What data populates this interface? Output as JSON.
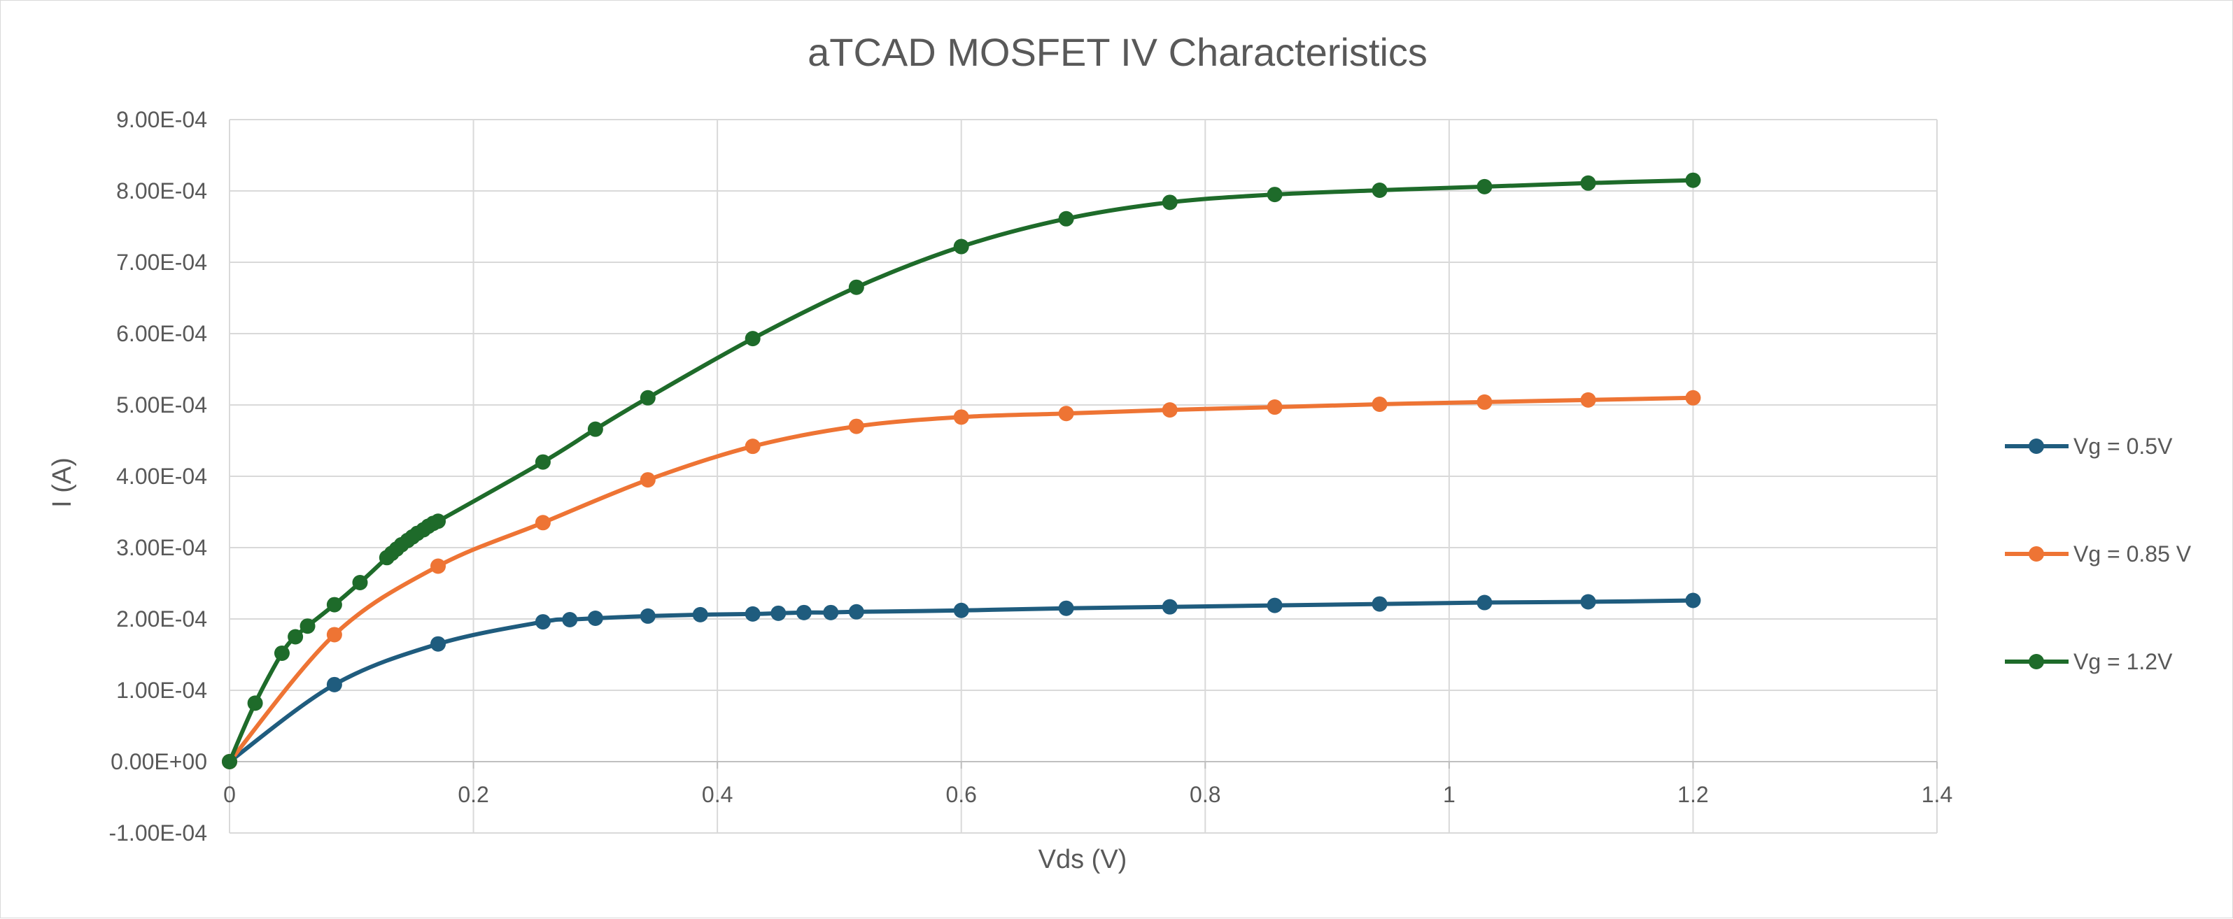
{
  "chart_data": {
    "type": "scatter",
    "title": "aTCAD MOSFET IV Characteristics",
    "xlabel": "Vds (V)",
    "ylabel": "I (A)",
    "xlim": [
      0,
      1.4
    ],
    "ylim": [
      -0.0001,
      0.0009
    ],
    "x_ticks": [
      0,
      0.2,
      0.4,
      0.6,
      0.8,
      1,
      1.2,
      1.4
    ],
    "x_tick_labels": [
      "0",
      "0.2",
      "0.4",
      "0.6",
      "0.8",
      "1",
      "1.2",
      "1.4"
    ],
    "y_ticks": [
      -0.0001,
      0,
      0.0001,
      0.0002,
      0.0003,
      0.0004,
      0.0005,
      0.0006,
      0.0007,
      0.0008,
      0.0009
    ],
    "y_tick_labels": [
      "-1.00E-04",
      "0.00E+00",
      "1.00E-04",
      "2.00E-04",
      "3.00E-04",
      "4.00E-04",
      "5.00E-04",
      "6.00E-04",
      "7.00E-04",
      "8.00E-04",
      "9.00E-04"
    ],
    "grid": true,
    "legend_position": "right",
    "smooth_lines": true,
    "markers": "circle",
    "series": [
      {
        "name": "Vg = 0.5V",
        "color": "#1f5c7e",
        "x": [
          0,
          0.086,
          0.171,
          0.257,
          0.279,
          0.3,
          0.343,
          0.386,
          0.429,
          0.45,
          0.471,
          0.493,
          0.514,
          0.6,
          0.686,
          0.771,
          0.857,
          0.943,
          1.029,
          1.114,
          1.2
        ],
        "y": [
          0,
          0.000108,
          0.000165,
          0.000196,
          0.000199,
          0.000201,
          0.000204,
          0.000206,
          0.000207,
          0.000208,
          0.000209,
          0.000209,
          0.00021,
          0.000212,
          0.000215,
          0.000217,
          0.000219,
          0.000221,
          0.000223,
          0.000224,
          0.000226
        ]
      },
      {
        "name": "Vg = 0.85 V",
        "color": "#ee7434",
        "x": [
          0,
          0.086,
          0.171,
          0.257,
          0.343,
          0.429,
          0.514,
          0.6,
          0.686,
          0.771,
          0.857,
          0.943,
          1.029,
          1.114,
          1.2
        ],
        "y": [
          0,
          0.000178,
          0.000274,
          0.000335,
          0.000395,
          0.000442,
          0.00047,
          0.000483,
          0.000488,
          0.000493,
          0.000497,
          0.000501,
          0.000504,
          0.000507,
          0.00051
        ]
      },
      {
        "name": "Vg = 1.2V",
        "color": "#1e6b2a",
        "x": [
          0,
          0.021,
          0.043,
          0.054,
          0.064,
          0.086,
          0.107,
          0.129,
          0.133,
          0.137,
          0.141,
          0.146,
          0.15,
          0.154,
          0.159,
          0.163,
          0.167,
          0.171,
          0.257,
          0.3,
          0.343,
          0.429,
          0.514,
          0.6,
          0.686,
          0.771,
          0.857,
          0.943,
          1.029,
          1.114,
          1.2
        ],
        "y": [
          0,
          8.2e-05,
          0.000152,
          0.000175,
          0.00019,
          0.00022,
          0.000251,
          0.000286,
          0.000292,
          0.000298,
          0.000304,
          0.00031,
          0.000315,
          0.00032,
          0.000325,
          0.00033,
          0.000334,
          0.000337,
          0.00042,
          0.000466,
          0.00051,
          0.000593,
          0.000665,
          0.000722,
          0.000761,
          0.000784,
          0.000795,
          0.000801,
          0.000806,
          0.000811,
          0.000815
        ]
      }
    ]
  }
}
